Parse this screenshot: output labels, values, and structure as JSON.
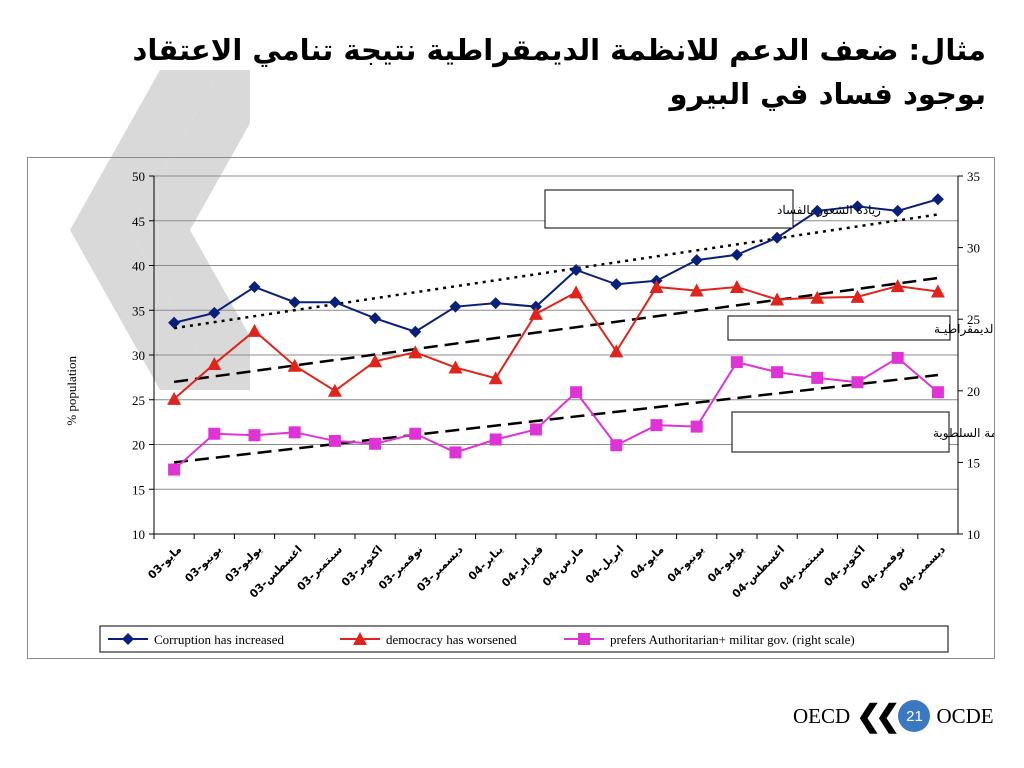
{
  "slide": {
    "title_line1": "مثال: ضعف الدعم للانظمة الديمقراطية نتيجة تنامي الاعتقاد",
    "title_line2": "بوجود فساد في البيرو",
    "footer_left": "OECD",
    "footer_mark": "❮❮",
    "page_number": "21",
    "footer_right": "OCDE"
  },
  "chart_data": {
    "type": "line",
    "left_axis": {
      "label": "% population",
      "range": [
        10,
        50
      ],
      "ticks": [
        10,
        15,
        20,
        25,
        30,
        35,
        40,
        45,
        50
      ]
    },
    "right_axis": {
      "range": [
        10,
        35
      ],
      "ticks": [
        10,
        15,
        20,
        25,
        30,
        35
      ]
    },
    "categories": [
      "مايو-03",
      "يونيو-03",
      "يوليو-03",
      "اغسطس-03",
      "سبتمبر-03",
      "اكتوبر-03",
      "نوفمبر-03",
      "ديسمبر-03",
      "يناير-04",
      "فبراير-04",
      "مارس-04",
      "ابريل-04",
      "مايو-04",
      "يونيو-04",
      "يوليو-04",
      "اغسطس-04",
      "سبتمبر-04",
      "اكتوبر-04",
      "نوفمبر-04",
      "ديسمبر-04"
    ],
    "series": [
      {
        "name": "Corruption has increased",
        "axis": "left",
        "color": "#0a1f7a",
        "marker": "diamond",
        "values": [
          33.6,
          34.7,
          37.6,
          35.9,
          35.9,
          34.1,
          32.6,
          35.4,
          35.8,
          35.4,
          39.5,
          37.9,
          38.3,
          40.6,
          41.2,
          43.1,
          46.1,
          46.6,
          46.1,
          47.4
        ]
      },
      {
        "name": "democracy has worsened",
        "axis": "left",
        "color": "#e0241b",
        "marker": "triangle",
        "values": [
          25.1,
          29.0,
          32.7,
          28.8,
          26.0,
          29.3,
          30.3,
          28.6,
          27.4,
          34.6,
          37.0,
          30.4,
          37.6,
          37.2,
          37.6,
          36.2,
          36.4,
          36.5,
          37.7,
          37.1
        ]
      },
      {
        "name": "prefers Authoritarian+ militar gov.",
        "name_suffix": "(right scale)",
        "axis": "right",
        "color": "#e033d6",
        "marker": "square",
        "values": [
          14.5,
          17.0,
          16.9,
          17.1,
          16.5,
          16.3,
          17.0,
          15.7,
          16.6,
          17.3,
          19.9,
          16.2,
          17.6,
          17.5,
          22.0,
          21.3,
          20.9,
          20.6,
          22.3,
          19.9
        ]
      }
    ],
    "trendlines": [
      {
        "series": "Corruption has increased",
        "axis": "left",
        "style": "dotted",
        "from": 33.0,
        "to": 45.7
      },
      {
        "series": "democracy has worsened",
        "axis": "left",
        "style": "dashed",
        "from": 27.0,
        "to": 38.6
      },
      {
        "series": "prefers Authoritarian+ militar gov.",
        "axis": "right",
        "style": "dashed",
        "from": 15.0,
        "to": 21.1
      }
    ],
    "annotations": [
      {
        "text": "زيادة الشعور بالفساد"
      },
      {
        "text": "تـراجع الديمقراطيـة"
      },
      {
        "text": "تفضيل الانظمة السلطوية"
      }
    ],
    "legend_placement": "bottom",
    "grid": "horizontal"
  }
}
